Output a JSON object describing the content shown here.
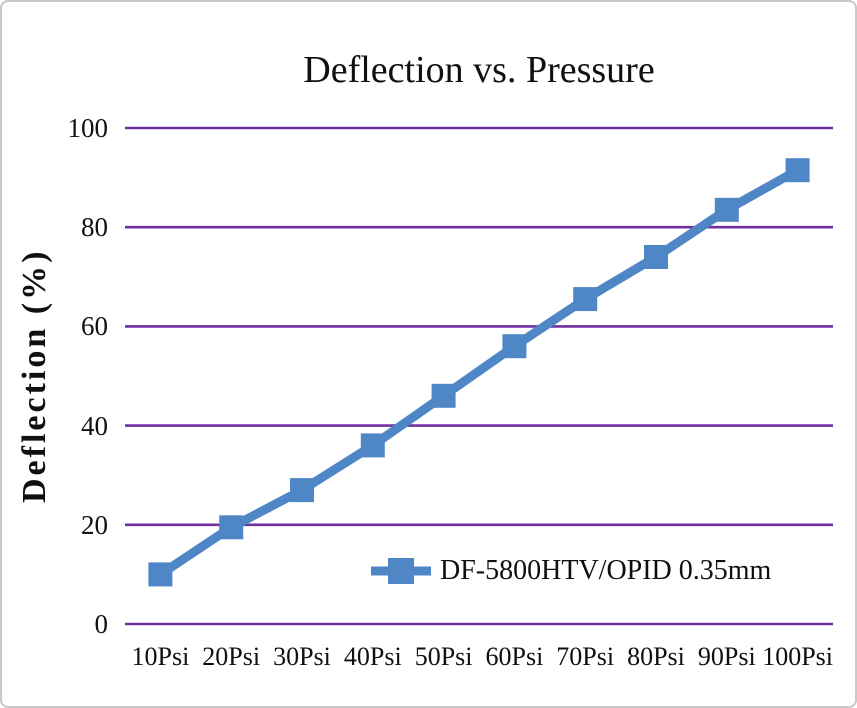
{
  "page": {
    "background": "#ffffff",
    "frame_border_color": "#c9c9c9"
  },
  "chart_data": {
    "type": "line",
    "title": "Deflection vs. Pressure",
    "xlabel": "",
    "ylabel": "Deflection (%)",
    "categories": [
      "10Psi",
      "20Psi",
      "30Psi",
      "40Psi",
      "50Psi",
      "60Psi",
      "70Psi",
      "80Psi",
      "90Psi",
      "100Psi"
    ],
    "series": [
      {
        "name": "DF-5800HTV/OPID 0.35mm",
        "values": [
          10,
          19.5,
          27,
          36,
          46,
          56,
          65.5,
          74,
          83.5,
          91.5
        ],
        "color": "#4F86C6",
        "marker": "square"
      }
    ],
    "y_ticks": [
      0,
      20,
      40,
      60,
      80,
      100
    ],
    "ylim": [
      0,
      100
    ],
    "grid": {
      "horizontal": true,
      "vertical": false,
      "color": "#7030A0"
    },
    "legend_position": "inside-bottom-center-right",
    "text_color": "#101010"
  }
}
